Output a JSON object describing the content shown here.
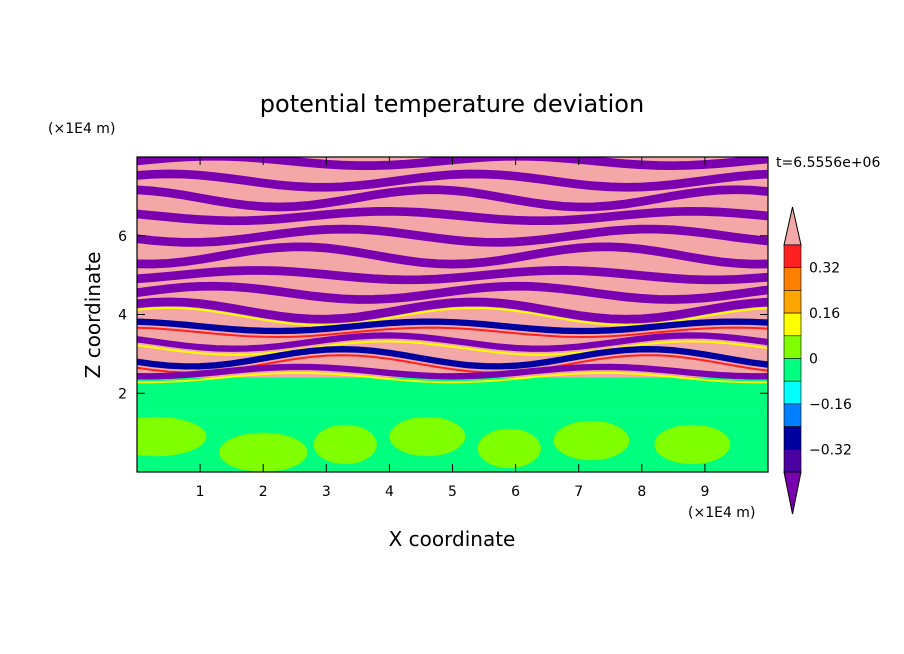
{
  "chart_data": {
    "type": "heatmap",
    "title": "potential temperature deviation",
    "xlabel": "X coordinate",
    "ylabel": "Z coordinate",
    "x_unit": "(×1E4 m)",
    "y_unit": "(×1E4 m)",
    "time_label": "t=6.5556e+06",
    "xlim": [
      0,
      10
    ],
    "ylim": [
      0,
      8
    ],
    "x_ticks": [
      1,
      2,
      3,
      4,
      5,
      6,
      7,
      8,
      9
    ],
    "y_ticks": [
      2,
      4,
      6
    ],
    "colorbar": {
      "levels": [
        -0.4,
        -0.32,
        -0.24,
        -0.16,
        -0.08,
        0,
        0.08,
        0.16,
        0.24,
        0.32,
        0.4
      ],
      "tick_labels": [
        "0.32",
        "0.16",
        "0",
        "−0.16",
        "−0.32"
      ],
      "tick_values": [
        0.32,
        0.16,
        0,
        -0.16,
        -0.32
      ],
      "colors_high_to_low": [
        "#f4a7a7",
        "#ff2020",
        "#ff7f00",
        "#ffa500",
        "#ffff00",
        "#7fff00",
        "#00ff7f",
        "#00ffff",
        "#0080ff",
        "#0000a0",
        "#4b00a0",
        "#7a00b0"
      ],
      "extend": "both"
    }
  }
}
